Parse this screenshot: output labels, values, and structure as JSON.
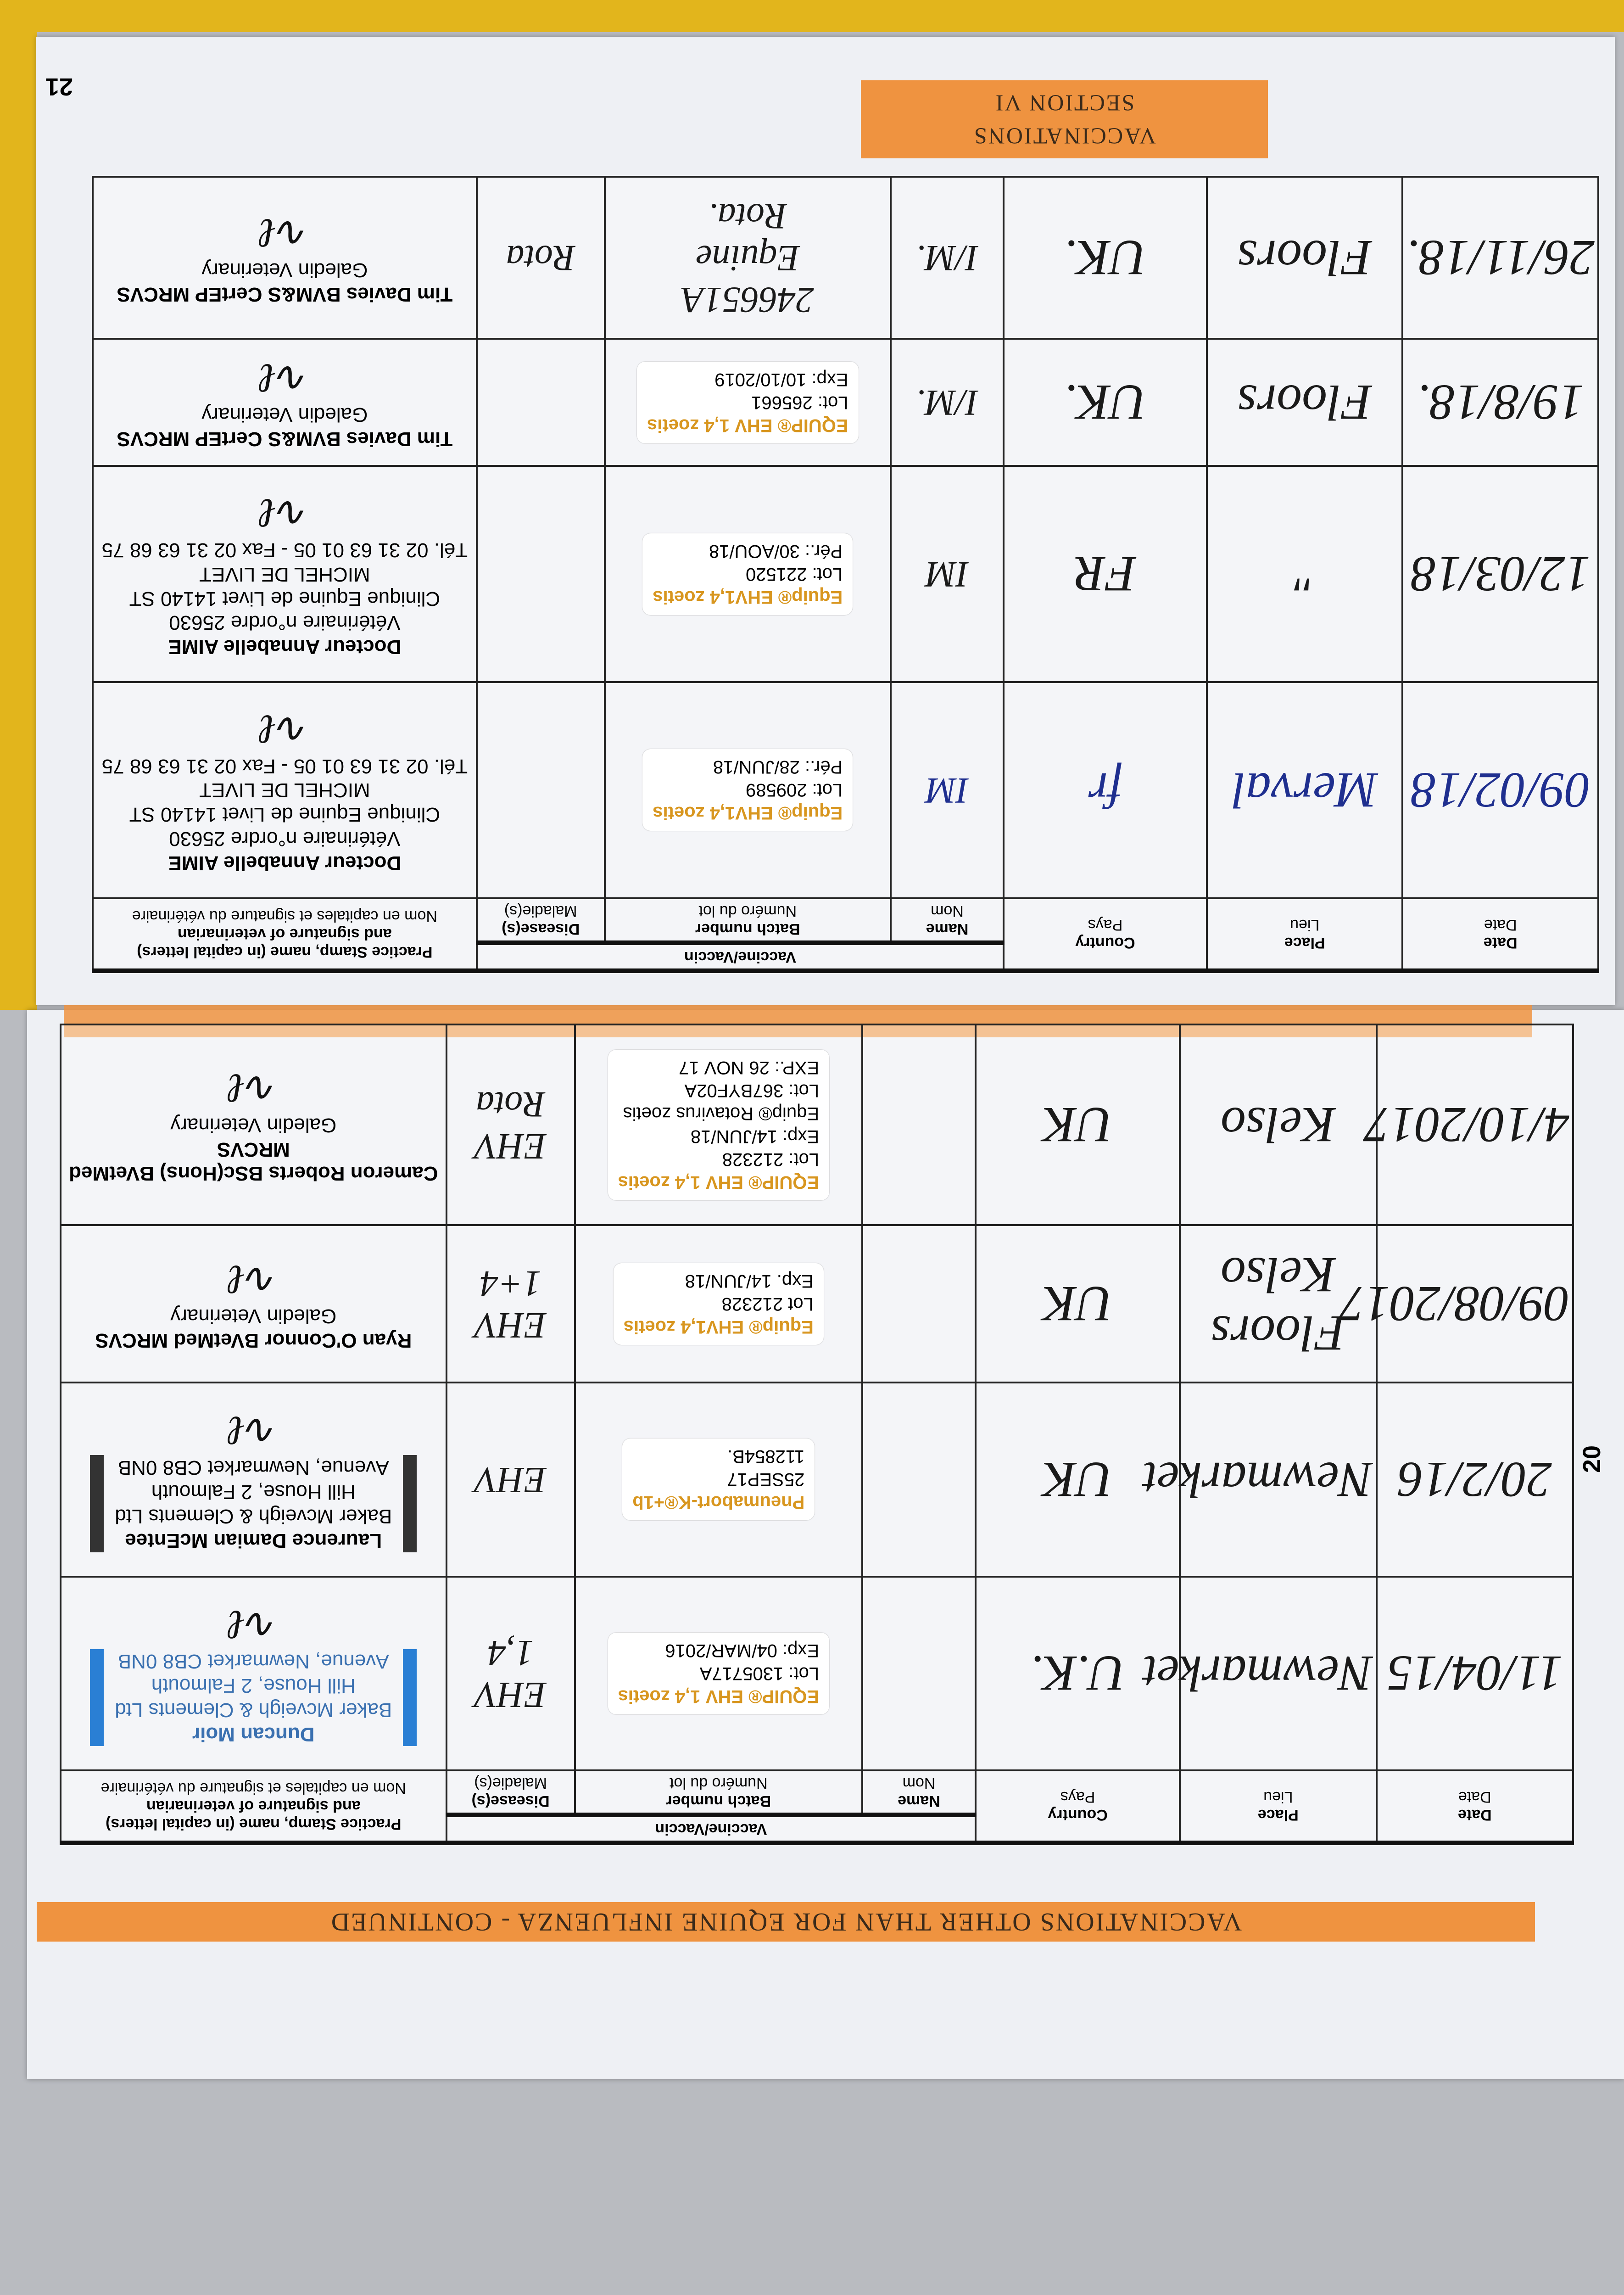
{
  "headers": {
    "date": "Date",
    "date_fr": "Date",
    "place": "Place",
    "place_fr": "Lieu",
    "country": "Country",
    "country_fr": "Pays",
    "vaccine": "Vaccine/Vaccin",
    "name": "Name",
    "name_fr": "Nom",
    "batch": "Batch number",
    "batch_fr": "Numéro du lot",
    "disease": "Disease(s)",
    "disease_fr": "Maladie(s)",
    "stamp": "Practice Stamp, name (in capital letters)",
    "stamp2": "and signature of veterinarian",
    "stamp_fr": "Nom en capitales et signature du vétérinaire"
  },
  "colors": {
    "band": "#ef9340",
    "folder": "#e2b51c",
    "blue_ink": "#1f2f8f",
    "stamp_blue": "#2a7fd4"
  },
  "pages": [
    {
      "title": "VACCINATIONS OTHER THAN FOR EQUINE INFLUENZA - CONTINUED",
      "page_number": "20",
      "rows": [
        {
          "date": "11/04/15",
          "place": "Newmarket",
          "country": "U.K.",
          "name": "",
          "batch": [
            "EQUIP® EHV 1,4 zoetis",
            "Lot: 1305717A",
            "Exp: 04/MAR/2016"
          ],
          "disease": "EHV 1,4",
          "stamp": [
            "Duncan Moir",
            "Baker Mcveigh & Clements Ltd",
            "Hill House, 2 Falmouth",
            "Avenue, Newmarket CB8 0NB"
          ],
          "stamp_style": "blue"
        },
        {
          "date": "20/2/16",
          "place": "Newmarket",
          "country": "UK",
          "name": "",
          "batch": [
            "Pneumabort-K®+1b",
            "25SEP17",
            "112854B."
          ],
          "disease": "EHV",
          "stamp": [
            "Laurence Damian McEntee",
            "Baker Mcveigh & Clements Ltd",
            "Hill House, 2 Falmouth",
            "Avenue, Newmarket CB8 0NB"
          ],
          "stamp_style": "boxed"
        },
        {
          "date": "09/08/2017",
          "place": "Floors Kelso",
          "country": "UK",
          "name": "",
          "batch": [
            "Equip® EHV1,4 zoetis",
            "Lot 212328",
            "Exp. 14/JUN/18"
          ],
          "disease": "EHV 1+4",
          "stamp": [
            "Ryan O'Connor BVetMed MRCVS",
            "Galedin Veterinary"
          ],
          "stamp_style": "plain"
        },
        {
          "date": "4/10/2017",
          "place": "Kelso",
          "country": "UK",
          "name": "",
          "batch": [
            "EQUIP® EHV 1,4 zoetis",
            "Lot: 212328",
            "Exp: 14/JUN/18",
            "Equip® Rotavirus zoetis",
            "Lot: 367BYF02A",
            "EXP.: 26 NOV 17"
          ],
          "disease": "EHV Rota",
          "stamp": [
            "Cameron Roberts BSc(Hons) BVetMed MRCVS",
            "Galedin Veterinary"
          ],
          "stamp_style": "plain"
        }
      ]
    },
    {
      "section": [
        "VACCINATIONS",
        "SECTION VI"
      ],
      "page_number": "21",
      "rows": [
        {
          "date": "09/02/18",
          "place": "Merval",
          "country": "fr",
          "name": "IM",
          "ink": "blue",
          "batch": [
            "Equip® EHV1,4 zoetis",
            "Lot: 209589",
            "Pér.: 28/JUN/18"
          ],
          "disease": "",
          "stamp": [
            "Docteur Annabelle AIME",
            "Vétérinaire n°ordre 25630",
            "Clinique Equine de Livet 14140 ST MICHEL DE LIVET",
            "Tél. 02 31 63 01 05 - Fax 02 31 63 68 75"
          ],
          "stamp_style": "plain"
        },
        {
          "date": "12/03/18",
          "place": "\"",
          "country": "FR",
          "name": "IM",
          "batch": [
            "Equip® EHV1,4 zoetis",
            "Lot: 221520",
            "Pér.: 30/AOU/18"
          ],
          "disease": "",
          "stamp": [
            "Docteur Annabelle AIME",
            "Vétérinaire n°ordre 25630",
            "Clinique Equine de Livet 14140 ST MICHEL DE LIVET",
            "Tél. 02 31 63 01 05 - Fax 02 31 63 68 75"
          ],
          "stamp_style": "plain"
        },
        {
          "date": "19/8/18.",
          "place": "Floors",
          "country": "UK.",
          "name": "I/M.",
          "batch": [
            "EQUIP® EHV 1,4 zoetis",
            "Lot: 265661",
            "Exp: 10/10/2019"
          ],
          "disease": "",
          "stamp": [
            "Tim Davies BVM&S CertEP MRCVS",
            "Galedin Veterinary"
          ],
          "stamp_style": "plain"
        },
        {
          "date": "26/11/18.",
          "place": "Floors",
          "country": "UK.",
          "name": "I/M.",
          "batch": [
            "246651A",
            "Equine",
            "Rota."
          ],
          "batch_handwritten": true,
          "disease": "Rota",
          "stamp": [
            "Tim Davies BVM&S CertEP MRCVS",
            "Galedin Veterinary"
          ],
          "stamp_style": "plain"
        }
      ]
    }
  ]
}
